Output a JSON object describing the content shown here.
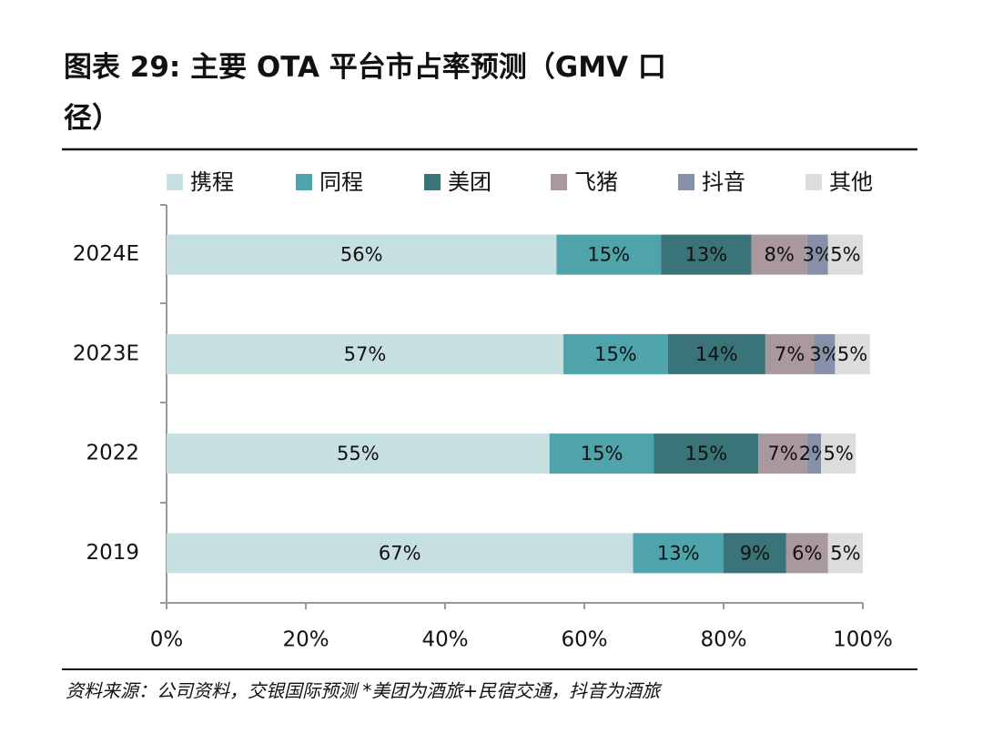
{
  "chart_data": {
    "type": "stacked-bar-horizontal",
    "title": "图表 29: 主要 OTA 平台市占率预测（GMV 口径）",
    "source": "资料来源：公司资料，交银国际预测  *美团为酒旅+民宿交通，抖音为酒旅",
    "categories": [
      "2024E",
      "2023E",
      "2022",
      "2019"
    ],
    "series": [
      {
        "name": "携程",
        "color": "#c6dfe1",
        "values": [
          56,
          57,
          55,
          67
        ],
        "value_labels": [
          "56%",
          "57%",
          "55%",
          "67%"
        ]
      },
      {
        "name": "同程",
        "color": "#4fa3ab",
        "values": [
          15,
          15,
          15,
          13
        ],
        "value_labels": [
          "15%",
          "15%",
          "15%",
          "13%"
        ]
      },
      {
        "name": "美团",
        "color": "#3b7478",
        "values": [
          13,
          14,
          15,
          9
        ],
        "value_labels": [
          "13%",
          "14%",
          "15%",
          "9%"
        ]
      },
      {
        "name": "飞猪",
        "color": "#a9989d",
        "values": [
          8,
          7,
          7,
          6
        ],
        "value_labels": [
          "8%",
          "7%",
          "7%",
          "6%"
        ]
      },
      {
        "name": "抖音",
        "color": "#8591a9",
        "values": [
          3,
          3,
          2,
          null
        ],
        "value_labels": [
          "3%",
          "3%",
          "2%",
          null
        ]
      },
      {
        "name": "其他",
        "color": "#dcdcdc",
        "values": [
          5,
          5,
          5,
          5
        ],
        "value_labels": [
          "5%",
          "5%",
          "5%",
          "5%"
        ]
      }
    ],
    "xlim": [
      0,
      100
    ],
    "xticks": [
      {
        "value": 0,
        "label": "0%"
      },
      {
        "value": 20,
        "label": "20%"
      },
      {
        "value": 40,
        "label": "40%"
      },
      {
        "value": 60,
        "label": "60%"
      },
      {
        "value": 80,
        "label": "80%"
      },
      {
        "value": 100,
        "label": "100%"
      }
    ],
    "legend": "top"
  }
}
